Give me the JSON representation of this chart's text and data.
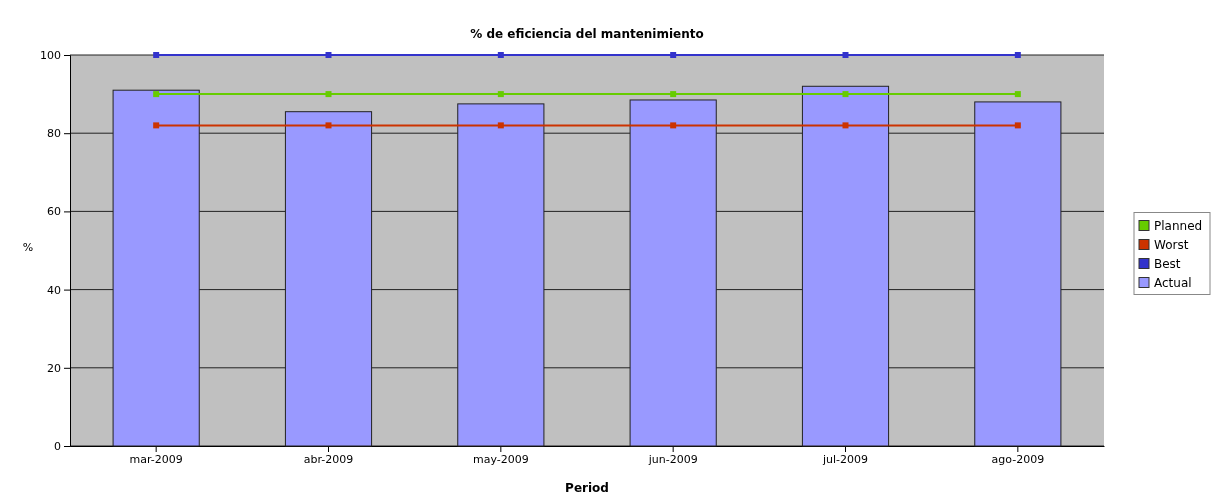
{
  "chart_data": {
    "type": "bar",
    "title": "% de eficiencia del mantenimiento",
    "xlabel": "Period",
    "ylabel": "%",
    "categories": [
      "mar-2009",
      "abr-2009",
      "may-2009",
      "jun-2009",
      "jul-2009",
      "ago-2009"
    ],
    "series": [
      {
        "name": "Planned",
        "type": "line",
        "color": "#66cc00",
        "values": [
          90,
          90,
          90,
          90,
          90,
          90
        ]
      },
      {
        "name": "Worst",
        "type": "line",
        "color": "#cc3300",
        "values": [
          82,
          82,
          82,
          82,
          82,
          82
        ]
      },
      {
        "name": "Best",
        "type": "line",
        "color": "#3333cc",
        "values": [
          100,
          100,
          100,
          100,
          100,
          100
        ]
      },
      {
        "name": "Actual",
        "color": "#9999ff",
        "values": [
          91,
          85.5,
          87.5,
          88.5,
          92,
          88
        ]
      }
    ],
    "ylim": [
      0,
      100
    ],
    "yticks": [
      0,
      20,
      40,
      60,
      80,
      100
    ],
    "grid": "y",
    "legend": "right",
    "marker": "square"
  }
}
